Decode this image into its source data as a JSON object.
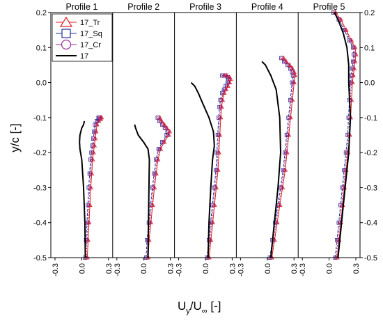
{
  "chart_data": {
    "type": "line",
    "ylabel": "y/c [-]",
    "xlabel": {
      "base": "U",
      "sub1": "y",
      "mid": "/U",
      "sub2": "∞",
      "tail": " [-]"
    },
    "ylim": [
      -0.5,
      0.2
    ],
    "yticks": [
      "0.2",
      "0.1",
      "0.0",
      "-0.1",
      "-0.2",
      "-0.3",
      "-0.4",
      "-0.5"
    ],
    "xlim": [
      -0.3,
      0.3
    ],
    "xticks": [
      "-0.3",
      "0.0",
      "0.3"
    ],
    "legend": {
      "position": "top-left",
      "entries": [
        {
          "name": "17_Tr",
          "marker": "triangle",
          "color": "#e41a1c"
        },
        {
          "name": "17_Sq",
          "marker": "square",
          "color": "#1f2f9a"
        },
        {
          "name": "17_Cr",
          "marker": "circle",
          "color": "#9b2a9b"
        },
        {
          "name": "17",
          "marker": "none",
          "color": "#000000"
        }
      ]
    },
    "panels": [
      {
        "title": "Profile 1",
        "marked": {
          "x": [
            0.05,
            0.06,
            0.07,
            0.08,
            0.09,
            0.1,
            0.11,
            0.12,
            0.13,
            0.14,
            0.15,
            0.16,
            0.18,
            0.2,
            0.21,
            0.2
          ],
          "y": [
            -0.5,
            -0.45,
            -0.4,
            -0.35,
            -0.3,
            -0.26,
            -0.22,
            -0.2,
            -0.18,
            -0.16,
            -0.14,
            -0.12,
            -0.11,
            -0.105,
            -0.1,
            -0.1
          ]
        },
        "line17": {
          "x": [
            0.04,
            0.035,
            0.02,
            0.0,
            -0.02,
            -0.025,
            -0.02,
            0.0,
            0.02,
            0.03
          ],
          "y": [
            -0.5,
            -0.4,
            -0.3,
            -0.22,
            -0.19,
            -0.17,
            -0.15,
            -0.13,
            -0.12,
            -0.11
          ]
        }
      },
      {
        "title": "Profile 2",
        "marked": {
          "x": [
            0.04,
            0.05,
            0.07,
            0.09,
            0.11,
            0.13,
            0.15,
            0.18,
            0.22,
            0.27,
            0.28,
            0.25,
            0.22,
            0.19,
            0.17
          ],
          "y": [
            -0.5,
            -0.45,
            -0.4,
            -0.35,
            -0.3,
            -0.26,
            -0.22,
            -0.19,
            -0.17,
            -0.15,
            -0.14,
            -0.13,
            -0.12,
            -0.11,
            -0.1
          ]
        },
        "line17": {
          "x": [
            0.05,
            0.055,
            0.06,
            0.065,
            0.05,
            0.0,
            -0.06,
            -0.09,
            -0.1
          ],
          "y": [
            -0.5,
            -0.4,
            -0.3,
            -0.22,
            -0.19,
            -0.17,
            -0.15,
            -0.13,
            -0.12
          ]
        }
      },
      {
        "title": "Profile 3",
        "marked": {
          "x": [
            0.03,
            0.05,
            0.07,
            0.09,
            0.11,
            0.13,
            0.14,
            0.15,
            0.16,
            0.17,
            0.18,
            0.2,
            0.22,
            0.24,
            0.26,
            0.27,
            0.26,
            0.23,
            0.2
          ],
          "y": [
            -0.5,
            -0.45,
            -0.4,
            -0.35,
            -0.3,
            -0.25,
            -0.2,
            -0.15,
            -0.1,
            -0.07,
            -0.05,
            -0.03,
            -0.02,
            -0.01,
            0.0,
            0.01,
            0.015,
            0.02,
            0.02
          ]
        },
        "line17": {
          "x": [
            0.03,
            0.04,
            0.06,
            0.08,
            0.1,
            0.09,
            0.04,
            -0.03,
            -0.08,
            -0.12,
            -0.16
          ],
          "y": [
            -0.5,
            -0.4,
            -0.3,
            -0.22,
            -0.18,
            -0.14,
            -0.1,
            -0.06,
            -0.03,
            -0.01,
            0.0
          ]
        }
      },
      {
        "title": "Profile 4",
        "marked": {
          "x": [
            0.04,
            0.07,
            0.1,
            0.13,
            0.16,
            0.19,
            0.21,
            0.23,
            0.25,
            0.27,
            0.29,
            0.3,
            0.29,
            0.27,
            0.24,
            0.2,
            0.17
          ],
          "y": [
            -0.5,
            -0.45,
            -0.4,
            -0.35,
            -0.3,
            -0.25,
            -0.2,
            -0.15,
            -0.1,
            -0.05,
            0.0,
            0.02,
            0.03,
            0.04,
            0.05,
            0.06,
            0.07
          ]
        },
        "line17": {
          "x": [
            0.04,
            0.08,
            0.12,
            0.15,
            0.14,
            0.1,
            0.04,
            -0.02,
            -0.06
          ],
          "y": [
            -0.5,
            -0.4,
            -0.3,
            -0.2,
            -0.1,
            -0.02,
            0.02,
            0.05,
            0.06
          ]
        }
      },
      {
        "title": "Profile 5",
        "marked": {
          "x": [
            0.08,
            0.1,
            0.12,
            0.14,
            0.16,
            0.18,
            0.2,
            0.22,
            0.23,
            0.24,
            0.25,
            0.26,
            0.27,
            0.28,
            0.29,
            0.28,
            0.24,
            0.18,
            0.12,
            0.06
          ],
          "y": [
            -0.5,
            -0.45,
            -0.4,
            -0.35,
            -0.3,
            -0.25,
            -0.2,
            -0.15,
            -0.1,
            -0.05,
            0.0,
            0.02,
            0.04,
            0.06,
            0.08,
            0.1,
            0.12,
            0.15,
            0.18,
            0.2
          ]
        },
        "line17": {
          "x": [
            0.1,
            0.14,
            0.18,
            0.22,
            0.24,
            0.23,
            0.22,
            0.22,
            0.2,
            0.16,
            0.1,
            0.06
          ],
          "y": [
            -0.5,
            -0.4,
            -0.3,
            -0.2,
            -0.1,
            -0.05,
            0.0,
            0.05,
            0.1,
            0.14,
            0.18,
            0.2
          ]
        }
      }
    ]
  }
}
